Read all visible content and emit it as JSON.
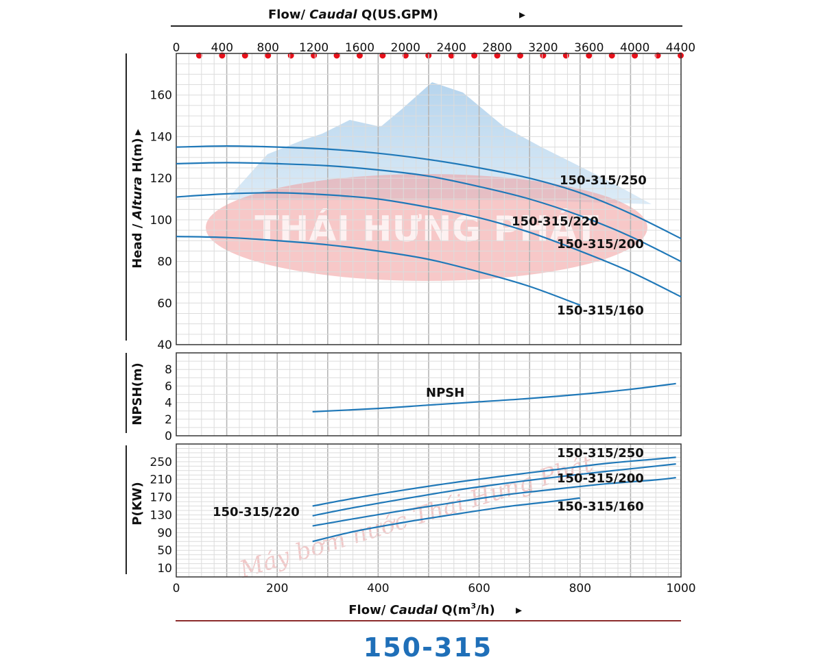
{
  "title": "150-315",
  "top_axis": {
    "label_a": "Flow/ ",
    "label_b": "Caudal",
    "label_c": " Q(US.GPM)",
    "arrow": "▸",
    "ticks": [
      "0",
      "400",
      "800",
      "1200",
      "1600",
      "2000",
      "2400",
      "2800",
      "3200",
      "3600",
      "4000",
      "4400"
    ]
  },
  "bottom_axis": {
    "label_a": "Flow/ ",
    "label_b": "Caudal",
    "label_c": " Q(m",
    "label_sup": "3",
    "label_d": "/h)",
    "arrow": "▸",
    "ticks": [
      "0",
      "200",
      "400",
      "600",
      "800",
      "1000"
    ]
  },
  "head_axis": {
    "label_a": "Head / ",
    "label_b": "Altura",
    "label_c": " H(m)",
    "arrow": "▸",
    "ticks": [
      "40",
      "60",
      "80",
      "100",
      "120",
      "140",
      "160"
    ]
  },
  "npsh_axis": {
    "label": "NPSH(m)",
    "ticks": [
      "0",
      "2",
      "4",
      "6",
      "8"
    ]
  },
  "power_axis": {
    "label": "P(KW)",
    "ticks": [
      "10",
      "50",
      "90",
      "130",
      "170",
      "210",
      "250"
    ]
  },
  "watermark": {
    "brand": "THÁI HƯNG PHÁT",
    "script": "Máy bơm nước Thái Hưng Phát"
  },
  "colors": {
    "curve": "#1f78b8",
    "title": "#1f6fb8",
    "marker": "#e8101a",
    "grid": "#c8c8c8"
  },
  "chart_data": [
    {
      "type": "line",
      "title": "150-315",
      "xlabel": "Flow/ Caudal Q(m3/h)",
      "ylabel": "Head / Altura H(m)",
      "xlim": [
        0,
        1000
      ],
      "ylim": [
        40,
        180
      ],
      "secondary_xlabel": "Flow/ Caudal Q(US.GPM)",
      "secondary_xlim": [
        0,
        4400
      ],
      "series": [
        {
          "name": "150-315/250",
          "x": [
            0,
            100,
            200,
            300,
            400,
            500,
            600,
            700,
            800,
            900,
            1000
          ],
          "y": [
            135,
            135.5,
            135,
            134,
            132,
            129,
            125,
            120,
            113,
            103,
            91
          ]
        },
        {
          "name": "150-315/220",
          "x": [
            0,
            100,
            200,
            300,
            400,
            500,
            600,
            700,
            800,
            900,
            1000
          ],
          "y": [
            127,
            127.5,
            127,
            126,
            124,
            121,
            116,
            110,
            102,
            92,
            80
          ]
        },
        {
          "name": "150-315/200",
          "x": [
            0,
            100,
            200,
            300,
            400,
            500,
            600,
            700,
            800,
            900,
            1000
          ],
          "y": [
            111,
            112.5,
            113,
            112,
            110,
            106,
            101,
            94,
            85,
            75,
            63
          ]
        },
        {
          "name": "150-315/160",
          "x": [
            0,
            100,
            200,
            300,
            400,
            500,
            600,
            700,
            800
          ],
          "y": [
            92,
            91.5,
            90,
            88,
            85,
            81,
            75,
            68,
            59
          ]
        }
      ]
    },
    {
      "type": "line",
      "ylabel": "NPSH(m)",
      "xlim": [
        0,
        1000
      ],
      "ylim": [
        0,
        10
      ],
      "series": [
        {
          "name": "NPSH",
          "x": [
            270,
            400,
            500,
            600,
            700,
            800,
            900,
            990
          ],
          "y": [
            2.9,
            3.3,
            3.7,
            4.1,
            4.5,
            5.0,
            5.6,
            6.3
          ]
        }
      ]
    },
    {
      "type": "line",
      "ylabel": "P(KW)",
      "xlim": [
        0,
        1000
      ],
      "ylim": [
        -10,
        290
      ],
      "series": [
        {
          "name": "150-315/250",
          "x": [
            270,
            350,
            450,
            550,
            650,
            750,
            850,
            950,
            990
          ],
          "y": [
            150,
            167,
            186,
            203,
            218,
            232,
            246,
            256,
            260
          ]
        },
        {
          "name": "150-315/220",
          "x": [
            270,
            350,
            450,
            550,
            650,
            750,
            850,
            950,
            990
          ],
          "y": [
            128,
            146,
            166,
            185,
            201,
            215,
            228,
            240,
            245
          ]
        },
        {
          "name": "150-315/200",
          "x": [
            270,
            350,
            450,
            550,
            650,
            750,
            850,
            950,
            990
          ],
          "y": [
            105,
            121,
            140,
            158,
            175,
            188,
            200,
            209,
            214
          ]
        },
        {
          "name": "150-315/160",
          "x": [
            270,
            350,
            450,
            550,
            650,
            750,
            800
          ],
          "y": [
            70,
            92,
            113,
            131,
            148,
            161,
            168
          ]
        }
      ]
    }
  ]
}
